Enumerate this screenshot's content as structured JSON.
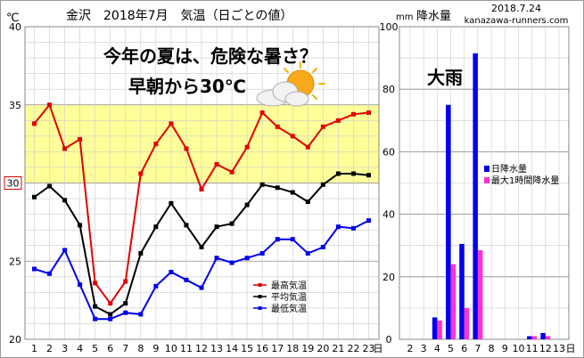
{
  "header": {
    "left_title": "金沢　2018年7月　気温（日ごとの値）",
    "deg_unit": "℃",
    "mm_unit": "mm",
    "rain_title": "降水量",
    "date": "2018.7.24",
    "site": "kanazawa-runners.com"
  },
  "annotations": {
    "headline_1": "今年の夏は、危険な暑さ？",
    "headline_2": "早朝から30℃",
    "heavy_rain": "大雨",
    "day_suffix": "日"
  },
  "colors": {
    "max": "#e00000",
    "avg": "#000000",
    "min": "#0000ee",
    "daily_rain": "#0000ee",
    "hourly_rain": "#ff33cc",
    "hot_band": "#ffff99",
    "grid": "#cccccc",
    "frame": "#888888"
  },
  "icons": {
    "weather": "sun-behind-cloud-icon"
  },
  "chart_data": [
    {
      "type": "line",
      "title": "金沢　2018年7月　気温（日ごとの値）",
      "ylabel": "℃",
      "ylim": [
        20,
        40
      ],
      "yticks": [
        "20",
        "25",
        "30",
        "35",
        "40"
      ],
      "highlight_30": "30",
      "x": [
        "1",
        "2",
        "3",
        "4",
        "5",
        "6",
        "7",
        "8",
        "9",
        "10",
        "11",
        "12",
        "13",
        "14",
        "15",
        "16",
        "17",
        "18",
        "19",
        "20",
        "21",
        "22",
        "23"
      ],
      "xlabel": "日",
      "grid": true,
      "legend_position": "bottom-right",
      "band": [
        30,
        35
      ],
      "series": [
        {
          "name": "最高気温",
          "key": "max",
          "values": [
            33.8,
            35.0,
            32.2,
            32.8,
            23.6,
            22.3,
            23.7,
            30.6,
            32.5,
            33.8,
            32.2,
            29.6,
            31.2,
            30.7,
            32.3,
            34.5,
            33.6,
            33.0,
            32.3,
            33.6,
            34.0,
            34.4,
            34.5
          ]
        },
        {
          "name": "平均気温",
          "key": "avg",
          "values": [
            29.1,
            29.8,
            28.9,
            27.3,
            22.1,
            21.6,
            22.3,
            25.5,
            27.2,
            28.7,
            27.3,
            25.9,
            27.2,
            27.4,
            28.6,
            29.9,
            29.7,
            29.4,
            28.8,
            29.9,
            30.6,
            30.6,
            30.5
          ]
        },
        {
          "name": "最低気温",
          "key": "min",
          "values": [
            24.5,
            24.2,
            25.7,
            23.5,
            21.3,
            21.3,
            21.7,
            21.6,
            23.4,
            24.3,
            23.8,
            23.3,
            25.2,
            24.9,
            25.2,
            25.5,
            26.4,
            26.4,
            25.5,
            25.9,
            27.2,
            27.1,
            27.6
          ]
        }
      ]
    },
    {
      "type": "bar",
      "title": "降水量",
      "ylabel": "mm",
      "ylim": [
        0,
        100
      ],
      "yticks": [
        "0",
        "20",
        "40",
        "60",
        "80",
        "100"
      ],
      "categories": [
        "2",
        "3",
        "4",
        "5",
        "6",
        "7",
        "8",
        "9",
        "10",
        "11",
        "12",
        "13"
      ],
      "xlabel": "日",
      "grid": true,
      "legend_position": "right",
      "series": [
        {
          "name": "日降水量",
          "key": "daily_rain",
          "values": [
            0,
            0,
            7,
            75,
            30.5,
            91.5,
            0,
            0,
            0,
            1,
            2,
            0
          ]
        },
        {
          "name": "最大1時間降水量",
          "key": "hourly_rain",
          "values": [
            0,
            0,
            6,
            24,
            10,
            28.5,
            0,
            0,
            0,
            1,
            1,
            0
          ]
        }
      ]
    }
  ]
}
